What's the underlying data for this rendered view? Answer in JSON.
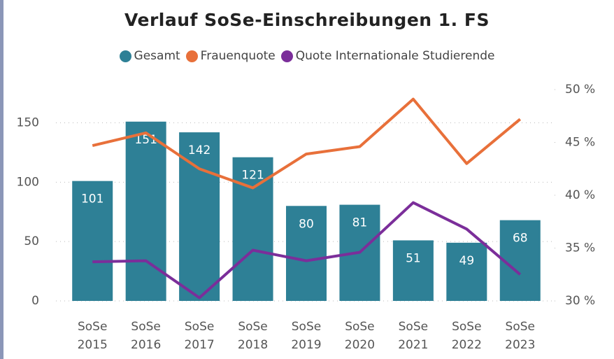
{
  "chart_data": {
    "type": "bar_line",
    "title": "Verlauf SoSe-Einschreibungen 1. FS",
    "categories": [
      "SoSe 2015",
      "SoSe 2016",
      "SoSe 2017",
      "SoSe 2018",
      "SoSe 2019",
      "SoSe 2020",
      "SoSe 2021",
      "SoSe 2022",
      "SoSe 2023"
    ],
    "series": [
      {
        "name": "Gesamt",
        "color": "#2e8096",
        "type": "bar",
        "values": [
          101,
          151,
          142,
          121,
          80,
          81,
          51,
          49,
          68
        ]
      },
      {
        "name": "Frauenquote",
        "color": "#e8703a",
        "type": "line",
        "axis": "y2",
        "values": [
          44.7,
          45.9,
          42.5,
          40.7,
          43.9,
          44.6,
          49.1,
          43.0,
          47.2
        ]
      },
      {
        "name": "Quote Internationale Studierende",
        "color": "#7b2e9a",
        "type": "line",
        "axis": "y2",
        "values": [
          33.7,
          33.8,
          30.3,
          34.8,
          33.8,
          34.6,
          39.3,
          36.8,
          32.5
        ]
      }
    ],
    "ylim": [
      0,
      178
    ],
    "yticks": [
      0,
      50,
      100,
      150
    ],
    "y2lim": [
      30,
      50
    ],
    "y2ticks": [
      {
        "value": 30,
        "label": "30 %"
      },
      {
        "value": 35,
        "label": "35 %"
      },
      {
        "value": 40,
        "label": "40 %"
      },
      {
        "value": 45,
        "label": "45 %"
      },
      {
        "value": 50,
        "label": "50 %"
      }
    ],
    "grid": true
  }
}
